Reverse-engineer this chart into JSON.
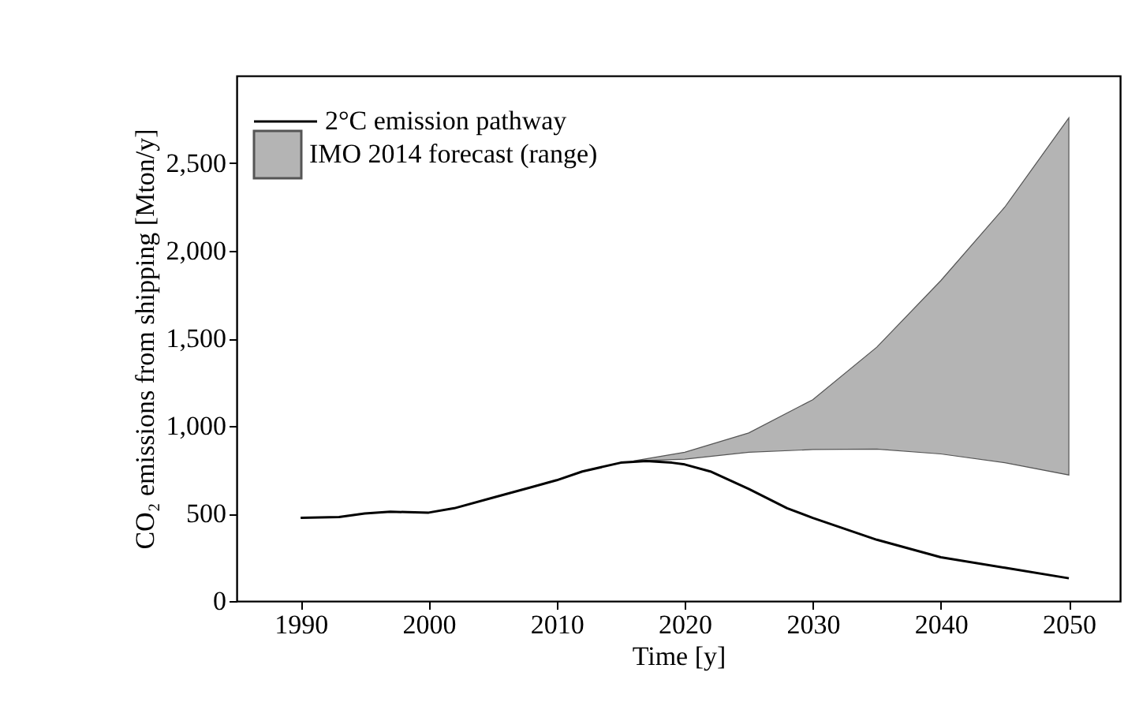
{
  "chart_data": {
    "type": "line",
    "xlabel": "Time [y]",
    "ylabel": "CO₂ emissions from shipping [Mton/y]",
    "xlim": [
      1985,
      2054
    ],
    "xticks": [
      1990,
      2000,
      2010,
      2020,
      2030,
      2040,
      2050
    ],
    "ylim": [
      0,
      3000
    ],
    "yticks": [
      0,
      {
        "value": 500,
        "label": "500"
      },
      {
        "value": 1000,
        "label": "1,000"
      },
      {
        "value": 1500,
        "label": "1,500"
      },
      {
        "value": 2000,
        "label": "2,000"
      },
      {
        "value": 2500,
        "label": "2,500"
      }
    ],
    "grid": false,
    "legend": "top left",
    "series": [
      {
        "name": "2°C emission pathway",
        "color": "#000000",
        "x": [
          1990,
          1993,
          1995,
          1997,
          2000,
          2002,
          2005,
          2008,
          2010,
          2012,
          2015,
          2017,
          2019,
          2020,
          2022,
          2025,
          2028,
          2030,
          2035,
          2040,
          2045,
          2050
        ],
        "values": [
          475,
          480,
          500,
          510,
          505,
          530,
          590,
          650,
          690,
          740,
          790,
          800,
          790,
          780,
          740,
          640,
          530,
          475,
          350,
          250,
          190,
          130
        ]
      },
      {
        "name": "IMO 2014 forecast (range)",
        "type": "area",
        "color": "#b4b4b4",
        "x": [
          2016,
          2020,
          2025,
          2030,
          2035,
          2040,
          2045,
          2050
        ],
        "values": [
          null,
          null,
          null,
          null,
          null,
          null,
          null,
          null
        ],
        "lower": [
          800,
          810,
          850,
          865,
          868,
          840,
          790,
          720
        ],
        "upper": [
          800,
          850,
          960,
          1150,
          1450,
          1830,
          2250,
          2760
        ]
      }
    ]
  }
}
